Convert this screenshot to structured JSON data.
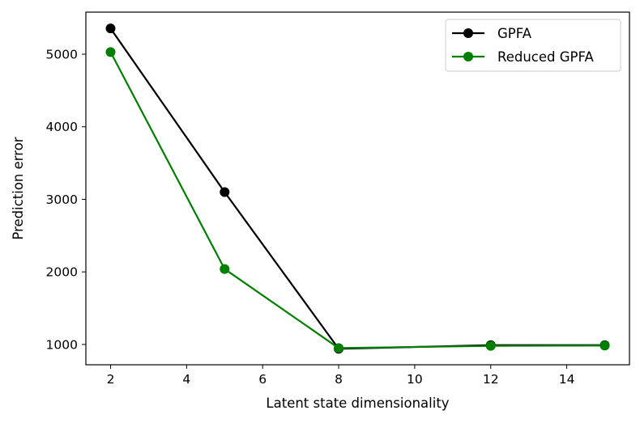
{
  "chart_data": {
    "type": "line",
    "title": "",
    "xlabel": "Latent state dimensionality",
    "ylabel": "Prediction error",
    "xlim": [
      1.35,
      15.65
    ],
    "ylim": [
      720,
      5580
    ],
    "xticks": [
      2,
      4,
      6,
      8,
      10,
      12,
      14
    ],
    "yticks": [
      1000,
      2000,
      3000,
      4000,
      5000
    ],
    "grid": false,
    "legend_position": "top-right",
    "x": [
      2,
      5,
      8,
      12,
      15
    ],
    "series": [
      {
        "name": "GPFA",
        "color": "#000000",
        "values": [
          5355,
          3100,
          940,
          990,
          990
        ]
      },
      {
        "name": "Reduced GPFA",
        "color": "#008000",
        "values": [
          5030,
          2040,
          950,
          980,
          985
        ]
      }
    ]
  }
}
